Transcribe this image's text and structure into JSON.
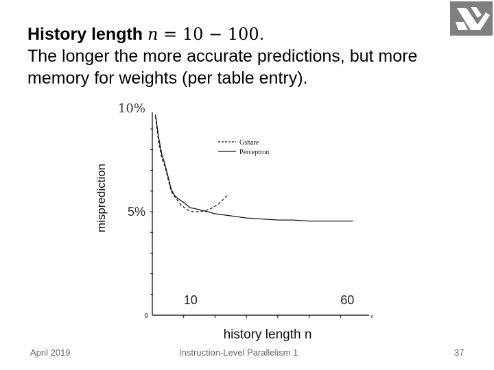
{
  "slide": {
    "title_bold": "History length",
    "title_var": "n",
    "title_eq": " = 10 − 100.",
    "line2": "The longer the more accurate predictions, but more",
    "line3": "memory for weights (per table entry)."
  },
  "footer": {
    "date": "April 2019",
    "course": "Instruction-Level Parallelism 1",
    "page": "37"
  },
  "chart_data": {
    "type": "line",
    "xlabel": "history length n",
    "ylabel": "misprediction",
    "xlim": [
      0,
      70
    ],
    "ylim": [
      0,
      10
    ],
    "x_tick_labels": [
      {
        "label": "10",
        "x": 10
      },
      {
        "label": "60",
        "x": 60
      }
    ],
    "y_tick_labels": [
      {
        "label": "10%",
        "y": 10
      },
      {
        "label": "5%",
        "y": 5
      }
    ],
    "axis_zero_label": "0",
    "legend": {
      "position": "top-right",
      "entries": [
        "Gshare",
        "Perceptron"
      ]
    },
    "grid": false,
    "series": [
      {
        "name": "Gshare",
        "style": "dashed",
        "x": [
          1,
          2,
          3,
          4,
          5,
          6,
          7,
          8,
          9,
          11,
          13,
          15,
          18,
          21,
          24
        ],
        "y": [
          9.6,
          8.4,
          7.6,
          7.2,
          6.6,
          6.0,
          5.75,
          5.55,
          5.35,
          5.1,
          5.0,
          5.0,
          5.1,
          5.35,
          5.8
        ]
      },
      {
        "name": "Perceptron",
        "style": "solid",
        "x": [
          1,
          2,
          3,
          4,
          5,
          6,
          7,
          8,
          10,
          12,
          15,
          20,
          25,
          30,
          35,
          40,
          45,
          50,
          55,
          60,
          64
        ],
        "y": [
          9.7,
          8.6,
          7.8,
          7.3,
          6.7,
          6.1,
          5.8,
          5.65,
          5.45,
          5.2,
          5.1,
          4.9,
          4.8,
          4.7,
          4.65,
          4.6,
          4.6,
          4.55,
          4.55,
          4.55,
          4.55
        ]
      }
    ]
  }
}
